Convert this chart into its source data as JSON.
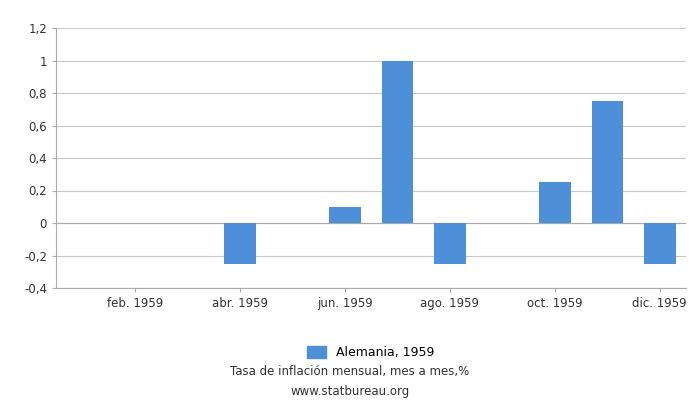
{
  "month_indices": [
    1,
    2,
    3,
    4,
    5,
    6,
    7,
    8,
    9,
    10,
    11,
    12
  ],
  "values": [
    0,
    0,
    0,
    -0.25,
    0,
    0.1,
    1.0,
    -0.25,
    0,
    0.25,
    0.75,
    -0.25
  ],
  "bar_color": "#4d90d9",
  "ylim": [
    -0.4,
    1.2
  ],
  "yticks": [
    -0.4,
    -0.2,
    0,
    0.2,
    0.4,
    0.6,
    0.8,
    1.0,
    1.2
  ],
  "ytick_labels": [
    "-0,4",
    "-0,2",
    "0",
    "0,2",
    "0,4",
    "0,6",
    "0,8",
    "1",
    "1,2"
  ],
  "xtick_positions": [
    2,
    4,
    6,
    8,
    10,
    12
  ],
  "xtick_labels": [
    "feb. 1959",
    "abr. 1959",
    "jun. 1959",
    "ago. 1959",
    "oct. 1959",
    "dic. 1959"
  ],
  "legend_label": "Alemania, 1959",
  "footer_line1": "Tasa de inflación mensual, mes a mes,%",
  "footer_line2": "www.statbureau.org",
  "background_color": "#ffffff",
  "grid_color": "#c8c8c8",
  "bar_width": 0.6
}
